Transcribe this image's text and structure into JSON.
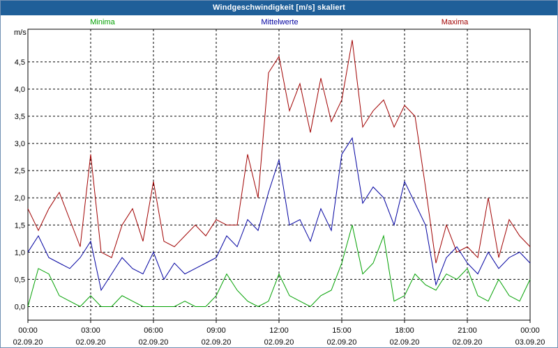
{
  "window": {
    "title": "Windgeschwindigkeit [m/s] skaliert"
  },
  "chart_data": {
    "type": "line",
    "title": "Windgeschwindigkeit [m/s] skaliert",
    "ylabel": "m/s",
    "xlabel": "",
    "ylim": [
      -0.25,
      5.1
    ],
    "grid": true,
    "y_ticks": [
      0,
      0.5,
      1.0,
      1.5,
      2.0,
      2.5,
      3.0,
      3.5,
      4.0,
      4.5
    ],
    "y_tick_labels": [
      "0,0",
      "0,5",
      "1,0",
      "1,5",
      "2,0",
      "2,5",
      "3,0",
      "3,5",
      "4,0",
      "4,5"
    ],
    "x_ticks": [
      {
        "time": "00:00",
        "date": "02.09.20"
      },
      {
        "time": "03:00",
        "date": "02.09.20"
      },
      {
        "time": "06:00",
        "date": "02.09.20"
      },
      {
        "time": "09:00",
        "date": "02.09.20"
      },
      {
        "time": "12:00",
        "date": "02.09.20"
      },
      {
        "time": "15:00",
        "date": "02.09.20"
      },
      {
        "time": "18:00",
        "date": "02.09.20"
      },
      {
        "time": "21:00",
        "date": "02.09.20"
      },
      {
        "time": "00:00",
        "date": "03.09.20"
      }
    ],
    "legend": [
      {
        "name": "Minima",
        "color": "#00a000"
      },
      {
        "name": "Mittelwerte",
        "color": "#0000a0"
      },
      {
        "name": "Maxima",
        "color": "#a00000"
      }
    ],
    "x_hours": [
      0,
      0.5,
      1,
      1.5,
      2,
      2.5,
      3,
      3.5,
      4,
      4.5,
      5,
      5.5,
      6,
      6.5,
      7,
      7.5,
      8,
      8.5,
      9,
      9.5,
      10,
      10.5,
      11,
      11.5,
      12,
      12.5,
      13,
      13.5,
      14,
      14.5,
      15,
      15.5,
      16,
      16.5,
      17,
      17.5,
      18,
      18.5,
      19,
      19.5,
      20,
      20.5,
      21,
      21.5,
      22,
      22.5,
      23,
      23.5,
      24
    ],
    "series": [
      {
        "name": "Maxima",
        "color": "#a00000",
        "values": [
          1.8,
          1.4,
          1.8,
          2.1,
          1.6,
          1.1,
          2.8,
          1.0,
          0.9,
          1.5,
          1.8,
          1.2,
          2.3,
          1.2,
          1.1,
          1.3,
          1.5,
          1.3,
          1.6,
          1.5,
          1.5,
          2.8,
          2.0,
          4.3,
          4.6,
          3.6,
          4.1,
          3.2,
          4.2,
          3.4,
          3.8,
          4.9,
          3.3,
          3.6,
          3.8,
          3.3,
          3.7,
          3.5,
          2.2,
          0.8,
          1.5,
          1.0,
          1.1,
          0.9,
          2.0,
          0.9,
          1.6,
          1.3,
          1.1
        ]
      },
      {
        "name": "Mittelwerte",
        "color": "#0000a0",
        "values": [
          1.0,
          1.3,
          0.9,
          0.8,
          0.7,
          0.9,
          1.2,
          0.3,
          0.6,
          0.9,
          0.7,
          0.6,
          1.0,
          0.5,
          0.8,
          0.6,
          0.7,
          0.8,
          0.9,
          1.3,
          1.1,
          1.6,
          1.4,
          2.1,
          2.7,
          1.5,
          1.6,
          1.2,
          1.8,
          1.4,
          2.8,
          3.1,
          1.9,
          2.2,
          2.0,
          1.5,
          2.3,
          1.9,
          1.5,
          0.4,
          0.9,
          1.1,
          0.8,
          0.6,
          1.0,
          0.7,
          0.9,
          1.0,
          0.8
        ]
      },
      {
        "name": "Minima",
        "color": "#00a000",
        "values": [
          0.0,
          0.7,
          0.6,
          0.2,
          0.1,
          0.0,
          0.2,
          0.0,
          0.0,
          0.2,
          0.1,
          0.0,
          0.0,
          0.0,
          0.0,
          0.1,
          0.0,
          0.0,
          0.2,
          0.6,
          0.3,
          0.1,
          0.0,
          0.1,
          0.6,
          0.2,
          0.1,
          0.0,
          0.2,
          0.3,
          0.8,
          1.5,
          0.6,
          0.8,
          1.3,
          0.1,
          0.2,
          0.6,
          0.4,
          0.3,
          0.6,
          0.5,
          0.7,
          0.2,
          0.1,
          0.5,
          0.2,
          0.1,
          0.5
        ]
      }
    ]
  }
}
